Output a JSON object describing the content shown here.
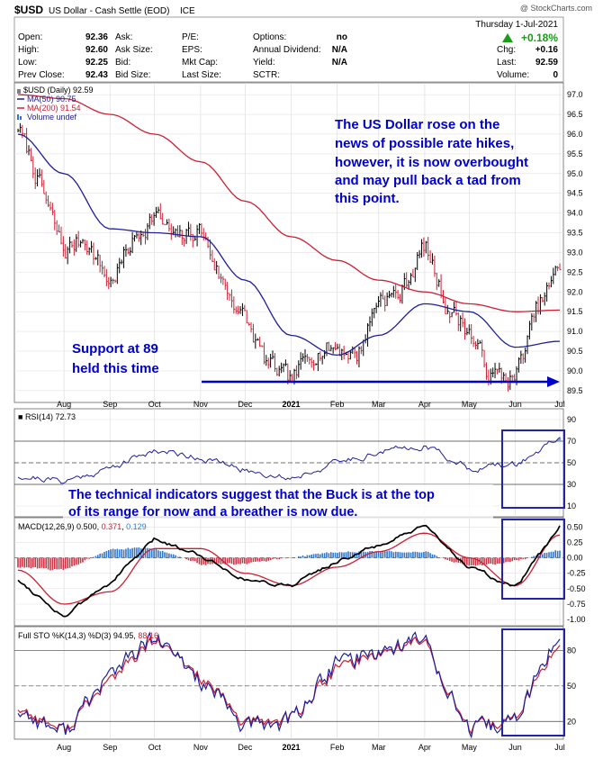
{
  "header": {
    "symbol": "$USD",
    "description": "US Dollar - Cash Settle (EOD)",
    "exchange": "ICE",
    "watermark": "@ StockCharts.com",
    "date": "Thursday   1-Jul-2021",
    "change_pct": "+0.18%",
    "left_labels": [
      "Open:",
      "High:",
      "Low:",
      "Prev Close:"
    ],
    "left_values": [
      "92.36",
      "92.60",
      "92.25",
      "92.43"
    ],
    "mid_labels": [
      "Ask:",
      "Ask Size:",
      "Bid:",
      "Bid Size:"
    ],
    "mid2_labels": [
      "P/E:",
      "EPS:",
      "Mkt Cap:",
      "Last Size:"
    ],
    "right_labels": [
      "Options:",
      "Annual Dividend:",
      "Yield:",
      "SCTR:"
    ],
    "right_values": [
      "no",
      "N/A",
      "N/A",
      ""
    ],
    "far_labels": [
      "Chg:",
      "Last:",
      "Volume:"
    ],
    "far_values": [
      "+0.16",
      "92.59",
      "0"
    ]
  },
  "price_panel": {
    "legend": [
      "$USD (Daily) 92.59",
      "MA(50) 90.75",
      "MA(200) 91.54",
      "Volume undef"
    ],
    "annotation_lines": [
      "The US Dollar rose on the",
      "news of possible rate hikes,",
      "however, it is now overbought",
      "and may pull back a tad from",
      "this point."
    ],
    "support_lines": [
      "Support at 89",
      "held this time"
    ]
  },
  "rsi_panel": {
    "legend": "RSI(14) 72.73",
    "annotation_lines": [
      "The technical indicators suggest that the Buck is at the top",
      "of its range for now and a breather is now due."
    ]
  },
  "macd_panel": {
    "legend_name": "MACD(12,26,9)",
    "legend_v1": "0.500",
    "legend_v2": "0.371",
    "legend_v3": "0.129"
  },
  "sto_panel": {
    "legend_name": "Full STO %K(14,3) %D(3)",
    "legend_v1": "94.95",
    "legend_v2": "88.16"
  },
  "colors": {
    "price": "#000000",
    "ma50": "#1f1f99",
    "ma200": "#cc1f33",
    "annotation": "#0000cc",
    "rsi_fill": "#e06070",
    "macd_hist_pos": "#3377cc",
    "macd_hist_neg": "#cc3344"
  },
  "chart_data": [
    {
      "type": "line",
      "panel": "price",
      "series": [
        {
          "name": "$USD (Daily)",
          "style": "ohlc",
          "x": [
            "2020-07-01",
            "2020-07-15",
            "2020-08-01",
            "2020-08-15",
            "2020-09-01",
            "2020-09-15",
            "2020-10-01",
            "2020-10-15",
            "2020-11-01",
            "2020-11-15",
            "2020-12-01",
            "2020-12-15",
            "2021-01-01",
            "2021-01-15",
            "2021-02-01",
            "2021-02-15",
            "2021-03-01",
            "2021-03-15",
            "2021-04-01",
            "2021-04-15",
            "2021-05-01",
            "2021-05-15",
            "2021-06-01",
            "2021-06-15",
            "2021-07-01"
          ],
          "values": [
            96.2,
            94.8,
            93.0,
            93.4,
            92.2,
            93.2,
            94.0,
            93.3,
            93.6,
            92.3,
            91.3,
            90.2,
            89.7,
            90.5,
            90.6,
            90.4,
            91.9,
            91.9,
            93.2,
            91.7,
            91.0,
            89.9,
            89.8,
            91.5,
            92.6
          ]
        },
        {
          "name": "MA(50)",
          "x": [
            "2020-07-01",
            "2020-08-01",
            "2020-09-01",
            "2020-10-01",
            "2020-11-01",
            "2020-12-01",
            "2021-01-01",
            "2021-02-01",
            "2021-03-01",
            "2021-04-01",
            "2021-05-01",
            "2021-06-01",
            "2021-07-01"
          ],
          "values": [
            96.0,
            95.0,
            93.6,
            93.5,
            93.4,
            92.3,
            90.9,
            90.4,
            90.9,
            91.7,
            91.5,
            90.6,
            90.75
          ]
        },
        {
          "name": "MA(200)",
          "x": [
            "2020-07-01",
            "2020-08-01",
            "2020-09-01",
            "2020-10-01",
            "2020-11-01",
            "2020-12-01",
            "2021-01-01",
            "2021-02-01",
            "2021-03-01",
            "2021-04-01",
            "2021-05-01",
            "2021-06-01",
            "2021-07-01"
          ],
          "values": [
            97.0,
            96.9,
            96.5,
            96.0,
            95.3,
            94.3,
            93.4,
            92.8,
            92.3,
            92.0,
            91.7,
            91.5,
            91.54
          ]
        }
      ],
      "ylim": [
        89.2,
        97.3
      ],
      "yticks": [
        89.5,
        90.0,
        90.5,
        91.0,
        91.5,
        92.0,
        92.5,
        93.0,
        93.5,
        94.0,
        94.5,
        95.0,
        95.5,
        96.0,
        96.5,
        97.0
      ],
      "xticks": [
        "Aug",
        "Sep",
        "Oct",
        "Nov",
        "Dec",
        "2021",
        "Feb",
        "Mar",
        "Apr",
        "May",
        "Jun",
        "Jul"
      ],
      "grid": true
    },
    {
      "type": "line",
      "panel": "rsi",
      "series": [
        {
          "name": "RSI(14)",
          "x": [
            "2020-07-01",
            "2020-08-01",
            "2020-09-01",
            "2020-10-01",
            "2020-11-01",
            "2020-12-01",
            "2021-01-01",
            "2021-02-01",
            "2021-03-01",
            "2021-04-01",
            "2021-05-01",
            "2021-06-01",
            "2021-07-01"
          ],
          "values": [
            38,
            33,
            45,
            62,
            55,
            43,
            36,
            50,
            60,
            66,
            45,
            48,
            72.73
          ]
        }
      ],
      "ylim": [
        0,
        100
      ],
      "yticks": [
        10,
        30,
        50,
        70,
        90
      ],
      "grid": true
    },
    {
      "type": "line",
      "panel": "macd",
      "series": [
        {
          "name": "MACD",
          "x": [
            "2020-07-01",
            "2020-08-01",
            "2020-09-01",
            "2020-10-01",
            "2020-11-01",
            "2020-12-01",
            "2021-01-01",
            "2021-02-01",
            "2021-03-01",
            "2021-04-01",
            "2021-05-01",
            "2021-06-01",
            "2021-07-01"
          ],
          "values": [
            -0.35,
            -0.95,
            -0.4,
            0.3,
            0.05,
            -0.35,
            -0.45,
            -0.05,
            0.2,
            0.5,
            -0.15,
            -0.5,
            0.5
          ]
        },
        {
          "name": "Signal",
          "x": [
            "2020-07-01",
            "2020-08-01",
            "2020-09-01",
            "2020-10-01",
            "2020-11-01",
            "2020-12-01",
            "2021-01-01",
            "2021-02-01",
            "2021-03-01",
            "2021-04-01",
            "2021-05-01",
            "2021-06-01",
            "2021-07-01"
          ],
          "values": [
            -0.2,
            -0.75,
            -0.55,
            0.15,
            0.15,
            -0.25,
            -0.45,
            -0.15,
            0.1,
            0.4,
            0.0,
            -0.45,
            0.371
          ]
        },
        {
          "name": "Histogram",
          "x": [
            "2020-07-01",
            "2020-08-01",
            "2020-09-01",
            "2020-10-01",
            "2020-11-01",
            "2020-12-01",
            "2021-01-01",
            "2021-02-01",
            "2021-03-01",
            "2021-04-01",
            "2021-05-01",
            "2021-06-01",
            "2021-07-01"
          ],
          "values": [
            -0.15,
            -0.2,
            0.15,
            0.15,
            -0.1,
            -0.1,
            0.0,
            0.1,
            0.1,
            0.1,
            -0.15,
            -0.05,
            0.129
          ]
        }
      ],
      "ylim": [
        -1.1,
        0.65
      ],
      "yticks": [
        0.5,
        0.25,
        0.0,
        -0.25,
        -0.5,
        -0.75,
        -1.0
      ]
    },
    {
      "type": "line",
      "panel": "sto",
      "series": [
        {
          "name": "%K(14,3)",
          "x": [
            "2020-07-01",
            "2020-08-01",
            "2020-09-01",
            "2020-10-01",
            "2020-11-01",
            "2020-12-01",
            "2021-01-01",
            "2021-02-01",
            "2021-03-01",
            "2021-04-01",
            "2021-05-01",
            "2021-06-01",
            "2021-07-01"
          ],
          "values": [
            30,
            10,
            60,
            90,
            55,
            15,
            20,
            70,
            80,
            90,
            10,
            20,
            94.95
          ]
        },
        {
          "name": "%D(3)",
          "x": [
            "2020-07-01",
            "2020-08-01",
            "2020-09-01",
            "2020-10-01",
            "2020-11-01",
            "2020-12-01",
            "2021-01-01",
            "2021-02-01",
            "2021-03-01",
            "2021-04-01",
            "2021-05-01",
            "2021-06-01",
            "2021-07-01"
          ],
          "values": [
            32,
            12,
            55,
            88,
            58,
            18,
            22,
            65,
            78,
            88,
            12,
            22,
            88.16
          ]
        }
      ],
      "ylim": [
        5,
        100
      ],
      "yticks": [
        20,
        50,
        80
      ],
      "xticks": [
        "Aug",
        "Sep",
        "Oct",
        "Nov",
        "Dec",
        "2021",
        "Feb",
        "Mar",
        "Apr",
        "May",
        "Jun",
        "Jul"
      ]
    }
  ]
}
